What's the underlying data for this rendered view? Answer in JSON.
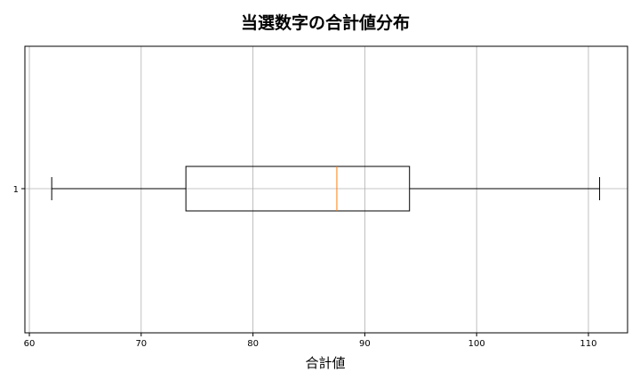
{
  "chart_data": {
    "type": "boxplot",
    "orientation": "horizontal",
    "title": "当選数字の合計値分布",
    "xlabel": "合計値",
    "ylabel": "",
    "xlim": [
      59.6,
      113.5
    ],
    "xticks": [
      60,
      70,
      80,
      90,
      100,
      110
    ],
    "yticks": [
      "1"
    ],
    "grid": true,
    "series": [
      {
        "label": "1",
        "whisker_low": 62,
        "q1": 74,
        "median": 87.5,
        "q3": 94,
        "whisker_high": 111
      }
    ],
    "colors": {
      "box": "#000000",
      "median": "#ff7f0e",
      "grid": "#b0b0b0"
    }
  }
}
